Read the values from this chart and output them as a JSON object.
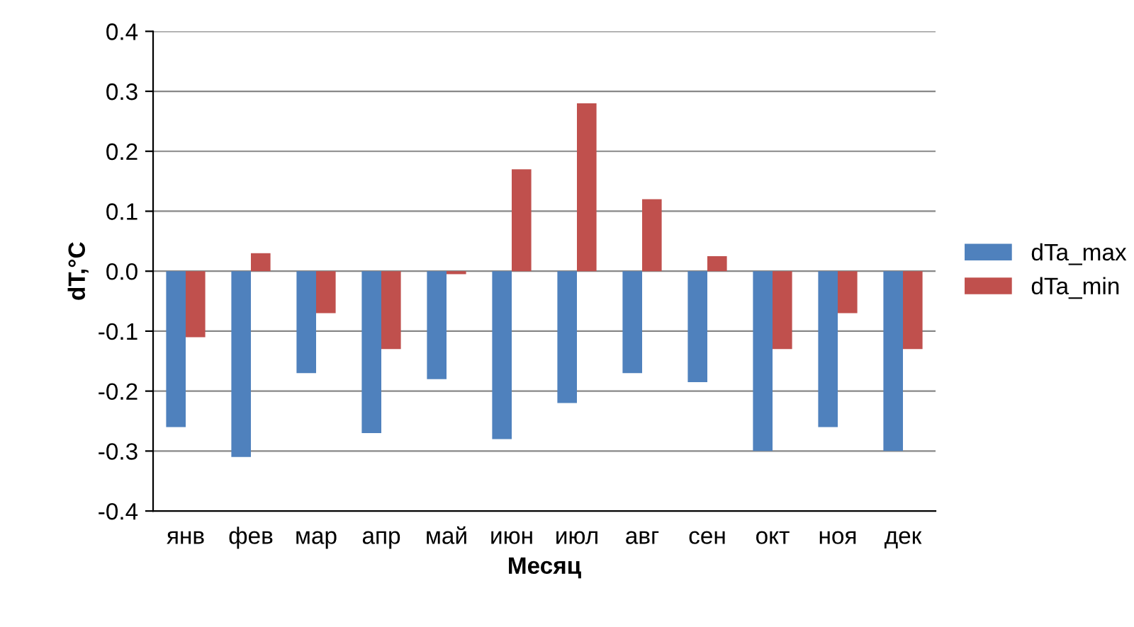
{
  "chart_data": {
    "type": "bar",
    "xlabel": "Месяц",
    "ylabel": "dT,°C",
    "categories": [
      "янв",
      "фев",
      "мар",
      "апр",
      "май",
      "июн",
      "июл",
      "авг",
      "сен",
      "окт",
      "ноя",
      "дек"
    ],
    "series": [
      {
        "name": "dTa_max",
        "color": "#4f81bd",
        "values": [
          -0.26,
          -0.31,
          -0.17,
          -0.27,
          -0.18,
          -0.28,
          -0.22,
          -0.17,
          -0.185,
          -0.3,
          -0.26,
          -0.3
        ]
      },
      {
        "name": "dTa_min",
        "color": "#c0504d",
        "values": [
          -0.11,
          0.03,
          -0.07,
          -0.13,
          -0.005,
          0.17,
          0.28,
          0.12,
          0.025,
          -0.13,
          -0.07,
          -0.13
        ]
      }
    ],
    "ylim": [
      -0.4,
      0.4
    ],
    "yticks": [
      {
        "value": -0.4,
        "label": "-0.4"
      },
      {
        "value": -0.3,
        "label": "-0.3"
      },
      {
        "value": -0.2,
        "label": "-0.2"
      },
      {
        "value": -0.1,
        "label": "-0.1"
      },
      {
        "value": 0,
        "label": "0.0"
      },
      {
        "value": 0.1,
        "label": "0.1"
      },
      {
        "value": 0.2,
        "label": "0.2"
      },
      {
        "value": 0.3,
        "label": "0.3"
      },
      {
        "value": 0.4,
        "label": "0.4"
      }
    ],
    "grid": "y",
    "legend": "right"
  }
}
